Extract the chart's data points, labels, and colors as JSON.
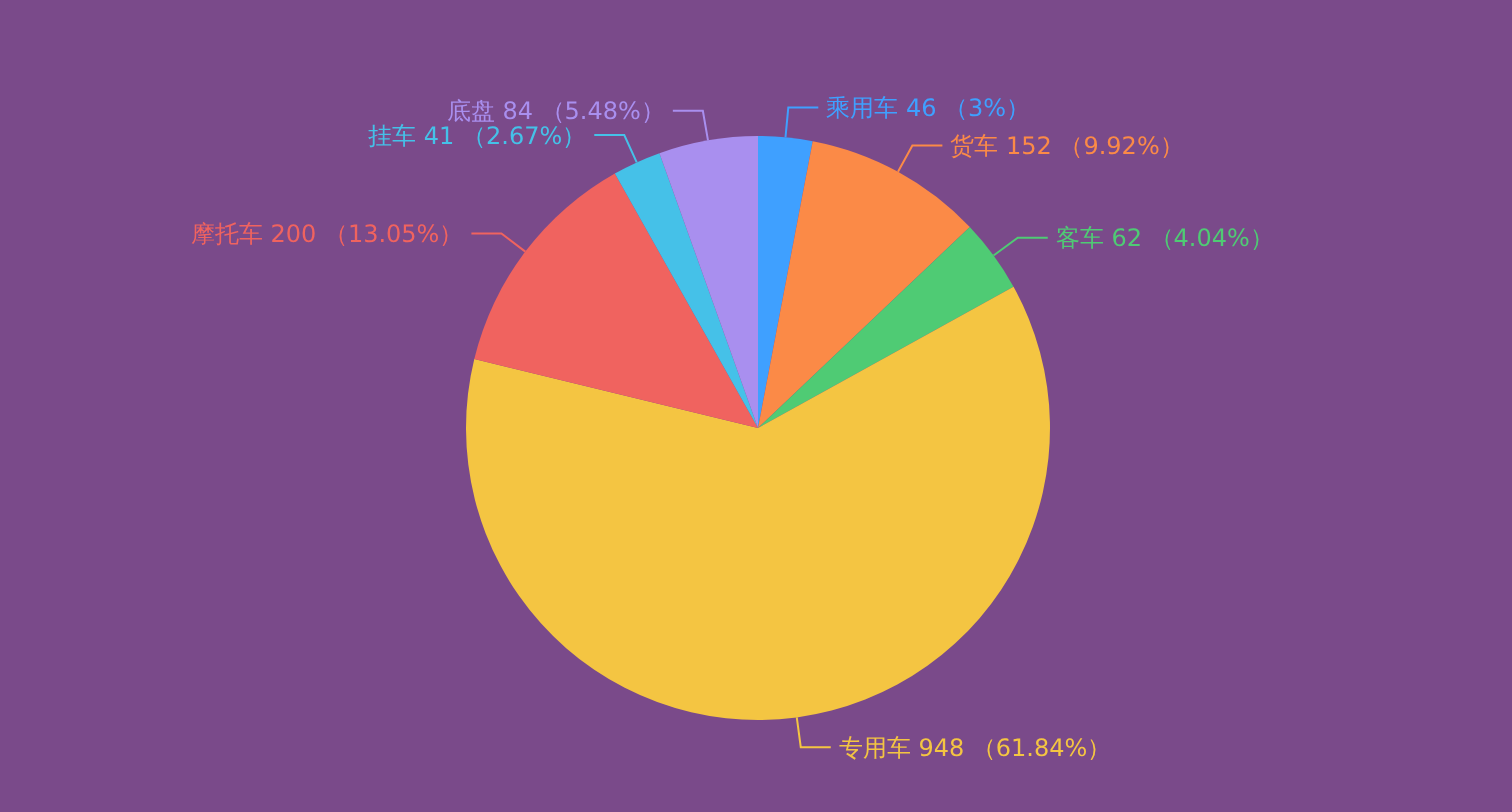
{
  "chart_data": {
    "type": "pie",
    "categories": [
      "乘用车",
      "货车",
      "客车",
      "专用车",
      "摩托车",
      "挂车",
      "底盘"
    ],
    "values": [
      46,
      152,
      62,
      948,
      200,
      41,
      84
    ],
    "value_labels": [
      "46 （3%）",
      "152 （9.92%）",
      "62 （4.04%）",
      "948 （61.84%）",
      "200 （13.05%）",
      "41 （2.67%）",
      "84 （5.48%）"
    ],
    "colors": [
      "#3fa0ff",
      "#fb8a47",
      "#4fcb74",
      "#f4c542",
      "#f0635f",
      "#45c1e8",
      "#a98fef"
    ]
  }
}
